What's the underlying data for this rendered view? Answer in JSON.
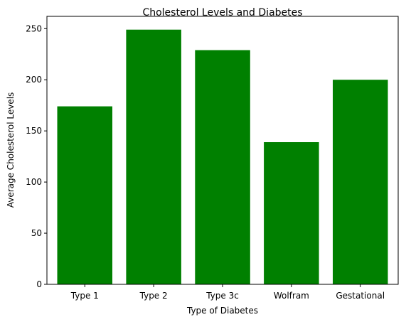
{
  "chart_data": {
    "type": "bar",
    "title": "Cholesterol Levels and Diabetes",
    "xlabel": "Type of Diabetes",
    "ylabel": "Average Cholesterol Levels",
    "categories": [
      "Type 1",
      "Type 2",
      "Type 3c",
      "Wolfram",
      "Gestational"
    ],
    "values": [
      174,
      249,
      229,
      139,
      200
    ],
    "ylim": [
      0,
      262
    ],
    "yticks": [
      0,
      50,
      100,
      150,
      200,
      250
    ],
    "bar_color": "#008000",
    "grid": false,
    "legend": "none"
  }
}
